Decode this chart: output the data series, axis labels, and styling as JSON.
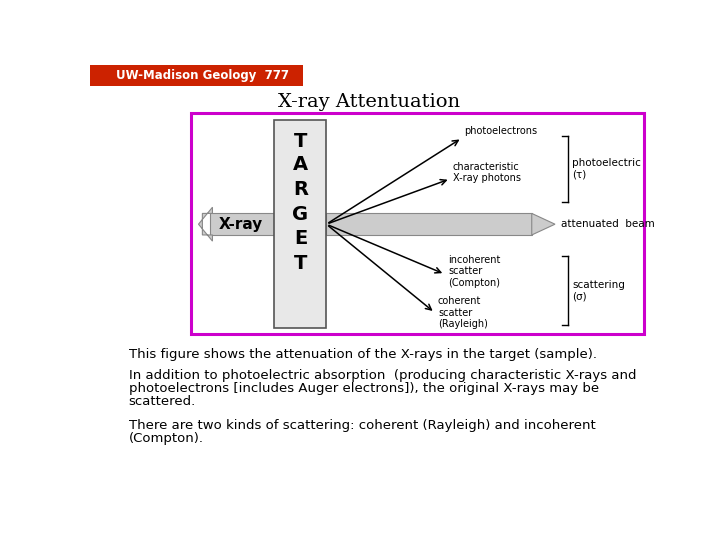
{
  "title": "X-ray Attentuation",
  "title_fontsize": 14,
  "bg_color": "#ffffff",
  "header_bg": "#cc2200",
  "header_text": "UW-Madison Geology  777",
  "box_border_color": "#cc00cc",
  "target_letters": [
    "T",
    "A",
    "R",
    "G",
    "E",
    "T"
  ],
  "xray_label": "X-ray",
  "para1": "This figure shows the attenuation of the X-rays in the target (sample).",
  "para2": "In addition to photoelectric absorption  (producing characteristic X-rays and photoelectrons [includes Auger electrons]), the original X-rays may be scattered.",
  "para3": "There are two kinds of scattering: coherent (Rayleigh) and incoherent (Compton)."
}
